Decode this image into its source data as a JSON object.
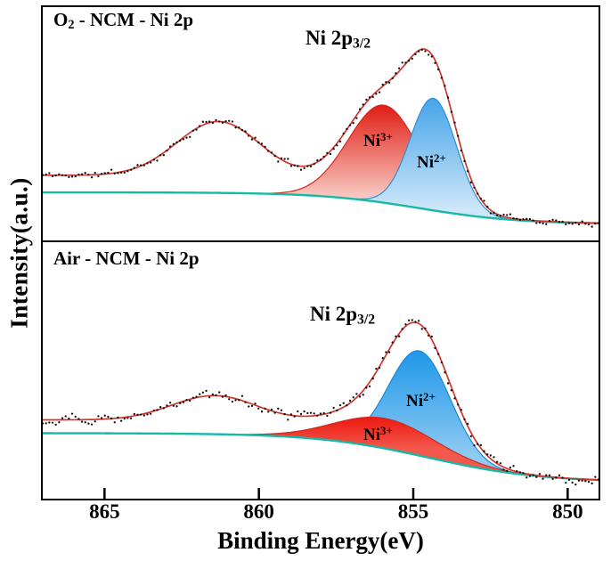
{
  "figure": {
    "background": "#ffffff"
  },
  "chart_data": {
    "type": "line",
    "title": "",
    "xlabel": "Binding Energy(eV)",
    "ylabel": "Intensity(a.u.)",
    "x_max": 867,
    "x_min": 849,
    "x_ticks": [
      865,
      860,
      855,
      850
    ],
    "axis_color": "#000000",
    "baseline_color": "#17b8a6",
    "dot_color": "#0a0a0a",
    "legend_position": "none",
    "grid": false,
    "panels": [
      {
        "id": "o2-ncm",
        "title_text": "O2 - NCM - Ni 2p",
        "title_parts": [
          {
            "text": "O"
          },
          {
            "text": "2",
            "style": "sub"
          },
          {
            "text": " - NCM - Ni 2p"
          }
        ],
        "peak_label_text": "Ni 2p3/2",
        "peak_label_parts": [
          {
            "text": "Ni 2p"
          },
          {
            "text": "3/2",
            "style": "sub"
          }
        ],
        "envelope_color": "#cf372e",
        "noise": 0.014,
        "seed": 11,
        "dot_count": 170,
        "background": {
          "left": 0.26,
          "right": 0.075,
          "center": 854.8,
          "width": 1.6
        },
        "extra_signal": {
          "amplitude": 0.1,
          "center": 856.0,
          "width": 1.5
        },
        "satellite": {
          "center": 861.3,
          "sigma": 1.35,
          "amplitude": 0.32
        },
        "components": [
          {
            "name": "Ni3+",
            "label_parts": [
              {
                "text": "Ni"
              },
              {
                "text": "3+",
                "style": "sup"
              }
            ],
            "center": 855.95,
            "sigma": 1.15,
            "amplitude": 0.57,
            "fill_top": "#e01d13",
            "fill_bottom": "#fad4cd",
            "stroke": "#d02a20"
          },
          {
            "name": "Ni2+",
            "label_parts": [
              {
                "text": "Ni"
              },
              {
                "text": "2+",
                "style": "sup"
              }
            ],
            "center": 854.35,
            "sigma": 0.75,
            "amplitude": 0.655,
            "fill_top": "#45a4e9",
            "fill_bottom": "#cfe7f9",
            "stroke": "#2e8fd0"
          }
        ]
      },
      {
        "id": "air-ncm",
        "title_text": "Air - NCM - Ni 2p",
        "title_parts": [
          {
            "text": "Air - NCM - Ni 2p"
          }
        ],
        "peak_label_text": "Ni 2p3/2",
        "peak_label_parts": [
          {
            "text": "Ni 2p"
          },
          {
            "text": "3/2",
            "style": "sub"
          }
        ],
        "envelope_color": "#cf372e",
        "noise": 0.016,
        "seed": 29,
        "dot_count": 170,
        "background": {
          "left": 0.27,
          "right": 0.05,
          "center": 854.5,
          "width": 1.8
        },
        "extra_signal": {
          "amplitude": 0.06,
          "center": 856.5,
          "width": 1.5
        },
        "satellite": {
          "center": 861.4,
          "sigma": 1.4,
          "amplitude": 0.115
        },
        "components": [
          {
            "name": "Ni2+",
            "label_parts": [
              {
                "text": "Ni"
              },
              {
                "text": "2+",
                "style": "sup"
              }
            ],
            "center": 854.8,
            "sigma": 1.0,
            "amplitude": 0.47,
            "fill_top": "#1f97e8",
            "fill_bottom": "#8ecaf3",
            "stroke": "#1f86d6"
          },
          {
            "name": "Ni3+",
            "label_parts": [
              {
                "text": "Ni"
              },
              {
                "text": "3+",
                "style": "sup"
              }
            ],
            "center": 855.9,
            "sigma": 1.6,
            "amplitude": 0.135,
            "fill_top": "#ed1b13",
            "fill_bottom": "#f2584b",
            "stroke": "#d02a20"
          }
        ]
      }
    ]
  }
}
